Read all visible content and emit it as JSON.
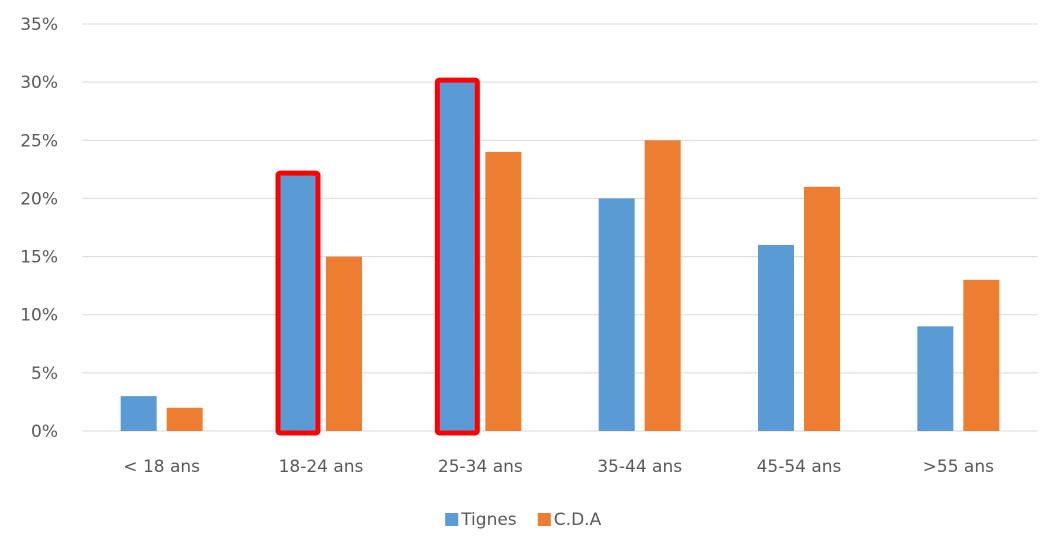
{
  "chart_data": {
    "type": "bar",
    "categories": [
      "< 18 ans",
      "18-24 ans",
      "25-34 ans",
      "35-44 ans",
      "45-54 ans",
      ">55 ans"
    ],
    "series": [
      {
        "name": "Tignes",
        "values": [
          3,
          22,
          30,
          20,
          16,
          9
        ],
        "color": "#5b9bd5"
      },
      {
        "name": "C.D.A",
        "values": [
          2,
          15,
          24,
          25,
          21,
          13
        ],
        "color": "#ed7d31"
      }
    ],
    "y_ticks": [
      "0%",
      "5%",
      "10%",
      "15%",
      "20%",
      "25%",
      "30%",
      "35%"
    ],
    "ylim": [
      0,
      35
    ],
    "y_unit": "%",
    "grid": true,
    "legend_position": "bottom",
    "highlighted": [
      {
        "series": "Tignes",
        "category": "18-24 ans",
        "outline_color": "#ff0000"
      },
      {
        "series": "Tignes",
        "category": "25-34 ans",
        "outline_color": "#ff0000"
      }
    ],
    "gridline_color": "#d9d9d9",
    "text_color": "#595959"
  }
}
